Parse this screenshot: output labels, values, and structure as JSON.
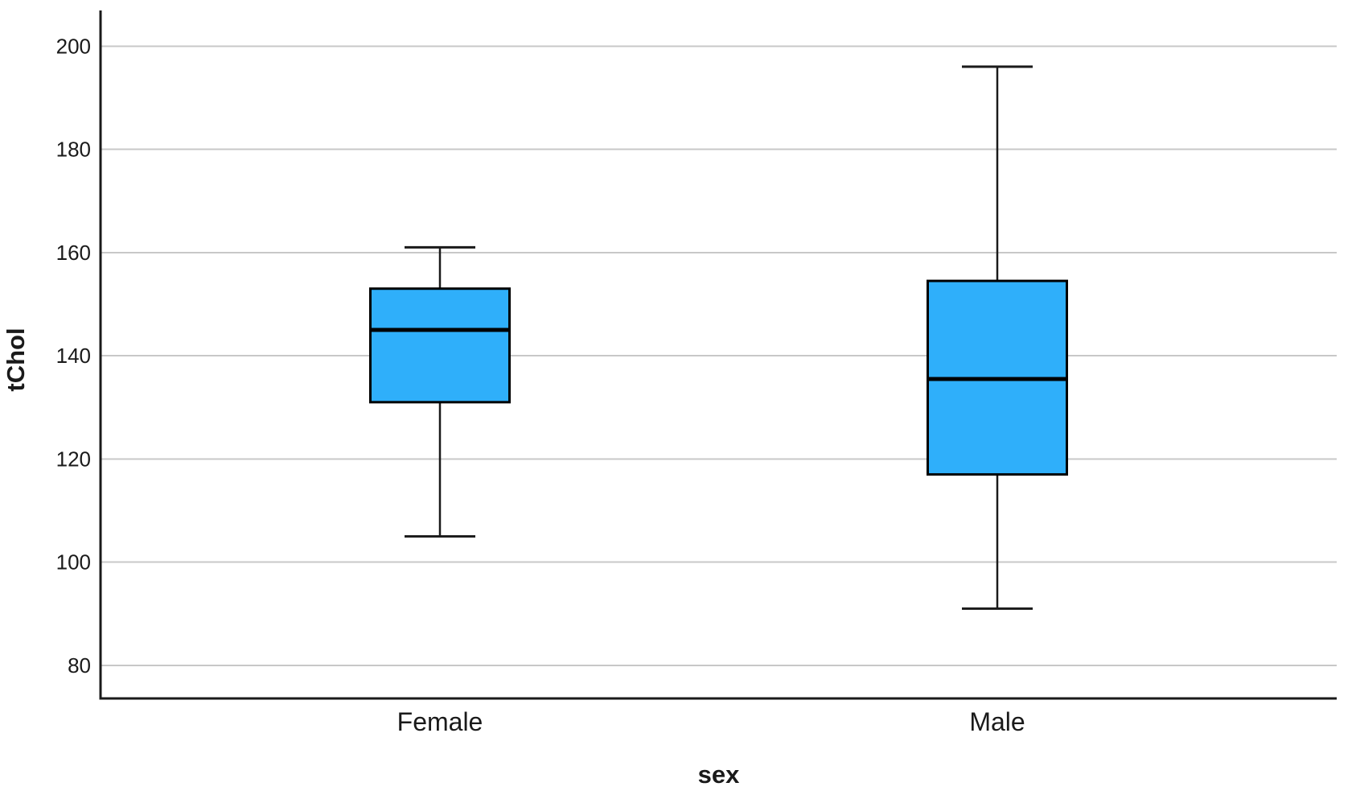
{
  "chart_data": {
    "type": "boxplot",
    "title": "",
    "xlabel": "sex",
    "ylabel": "tChol",
    "categories": [
      "Female",
      "Male"
    ],
    "series": [
      {
        "category": "Female",
        "whisker_low": 105,
        "q1": 131,
        "median": 145,
        "q3": 153,
        "whisker_high": 161,
        "outliers": []
      },
      {
        "category": "Male",
        "whisker_low": 91,
        "q1": 117,
        "median": 135.5,
        "q3": 154.5,
        "whisker_high": 196,
        "outliers": []
      }
    ],
    "y_ticks": [
      80,
      100,
      120,
      140,
      160,
      180,
      200
    ],
    "ylim": [
      73.6,
      206.9
    ],
    "grid": true,
    "legend": "none",
    "colors": {
      "box_fill": "#2FAFFA",
      "box_border": "#000000",
      "median": "#000000",
      "whisker": "#1A1A1A",
      "axis": "#1A1A1A",
      "gridline": "#C8C8C8",
      "background": "#FFFFFF",
      "text": "#1A1A1A"
    }
  }
}
